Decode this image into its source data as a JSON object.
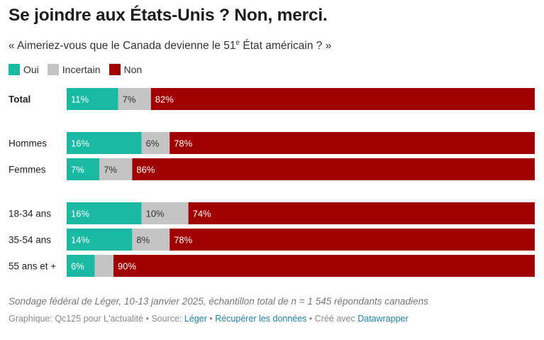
{
  "title": "Se joindre aux États-Unis ? Non, merci.",
  "subtitle": {
    "before": "« Aimeriez-vous que le Canada devienne le 51",
    "sup": "e",
    "after": " État américain ? »"
  },
  "note": "Sondage fédéral de Léger, 10-13 janvier 2025, échantillon total de n = 1 545 répondants canadiens",
  "footer": {
    "credit": "Graphique: Qc125 pour L'actualité • Source: ",
    "source_link": "Léger",
    "sep1": " • ",
    "data_link": "Récupérer les données",
    "sep2": " • Créé avec ",
    "tool_link": "Datawrapper"
  },
  "chart_data": {
    "type": "bar",
    "orientation": "horizontal",
    "stacked": true,
    "normalized": true,
    "value_suffix": "%",
    "categories": [
      "Total",
      "Hommes",
      "Femmes",
      "18-34 ans",
      "35-54 ans",
      "55 ans et +"
    ],
    "bold_categories": [
      "Total"
    ],
    "groups": [
      [
        "Total"
      ],
      [
        "Hommes",
        "Femmes"
      ],
      [
        "18-34 ans",
        "35-54 ans",
        "55 ans et +"
      ]
    ],
    "series": [
      {
        "name": "Oui",
        "color": "#1ab9a4",
        "label_color": "#ffffff",
        "values": [
          11,
          16,
          7,
          16,
          14,
          6
        ]
      },
      {
        "name": "Incertain",
        "color": "#c4c4c4",
        "label_color": "#333333",
        "values": [
          7,
          6,
          7,
          10,
          8,
          4
        ]
      },
      {
        "name": "Non",
        "color": "#a10000",
        "label_color": "#ffffff",
        "values": [
          82,
          78,
          86,
          74,
          78,
          90
        ]
      }
    ],
    "data_labels": [
      [
        "11%",
        "16%",
        "7%",
        "16%",
        "14%",
        "6%"
      ],
      [
        "7%",
        "6%",
        "7%",
        "10%",
        "8%",
        ""
      ],
      [
        "82%",
        "78%",
        "86%",
        "74%",
        "78%",
        "90%"
      ]
    ],
    "legend_position": "top-left",
    "grid": false
  }
}
